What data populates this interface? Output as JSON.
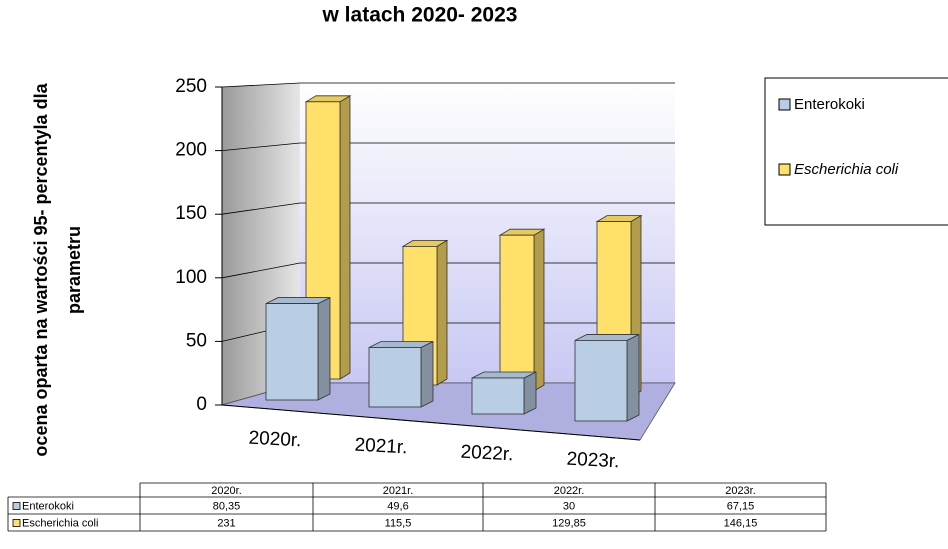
{
  "chart_data": {
    "type": "bar3d",
    "title": "w latach 2020- 2023",
    "y_label": [
      "ocena oparta na wartości  95- percentyla dla",
      "parametru"
    ],
    "categories": [
      "2020r.",
      "2021r.",
      "2022r.",
      "2023r."
    ],
    "series": [
      {
        "name": "Enterokoki",
        "color": "#b9cde5",
        "values": [
          80.35,
          49.6,
          30,
          67.15
        ],
        "value_labels": [
          "80,35",
          "49,6",
          "30",
          "67,15"
        ]
      },
      {
        "name": "Escherichia coli",
        "color": "#ffe06a",
        "values": [
          231,
          115.5,
          129.85,
          146.15
        ],
        "value_labels": [
          "231",
          "115,5",
          "129,85",
          "146,15"
        ]
      }
    ],
    "ylim": [
      0,
      250
    ],
    "yticks": [
      0,
      50,
      100,
      150,
      200,
      250
    ],
    "grid": true,
    "legend": "right"
  }
}
